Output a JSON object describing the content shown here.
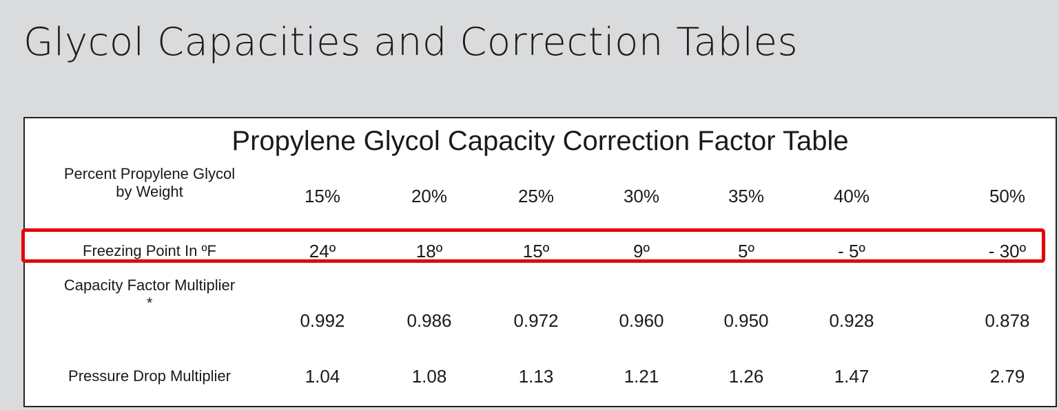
{
  "slide": {
    "title": "Glycol Capacities and Correction Tables"
  },
  "table": {
    "title": "Propylene Glycol Capacity Correction Factor Table",
    "rows": [
      {
        "label_line1": "Percent Propylene Glycol",
        "label_line2": "by Weight",
        "values": [
          "15%",
          "20%",
          "25%",
          "30%",
          "35%",
          "40%",
          "50%"
        ]
      },
      {
        "label_line1": "Freezing Point In ºF",
        "label_line2": "",
        "values": [
          "24º",
          "18º",
          "15º",
          "9º",
          "5º",
          "- 5º",
          "- 30º"
        ]
      },
      {
        "label_line1": "Capacity Factor Multiplier",
        "label_line2": "*",
        "values": [
          "0.992",
          "0.986",
          "0.972",
          "0.960",
          "0.950",
          "0.928",
          "0.878"
        ]
      },
      {
        "label_line1": "Pressure Drop Multiplier",
        "label_line2": "",
        "values": [
          "1.04",
          "1.08",
          "1.13",
          "1.21",
          "1.26",
          "1.47",
          "2.79"
        ]
      }
    ],
    "highlighted_row": "Freezing Point In ºF"
  },
  "colors": {
    "background": "#dadbdd",
    "table_background": "#ffffff",
    "highlight": "#e3040b"
  }
}
